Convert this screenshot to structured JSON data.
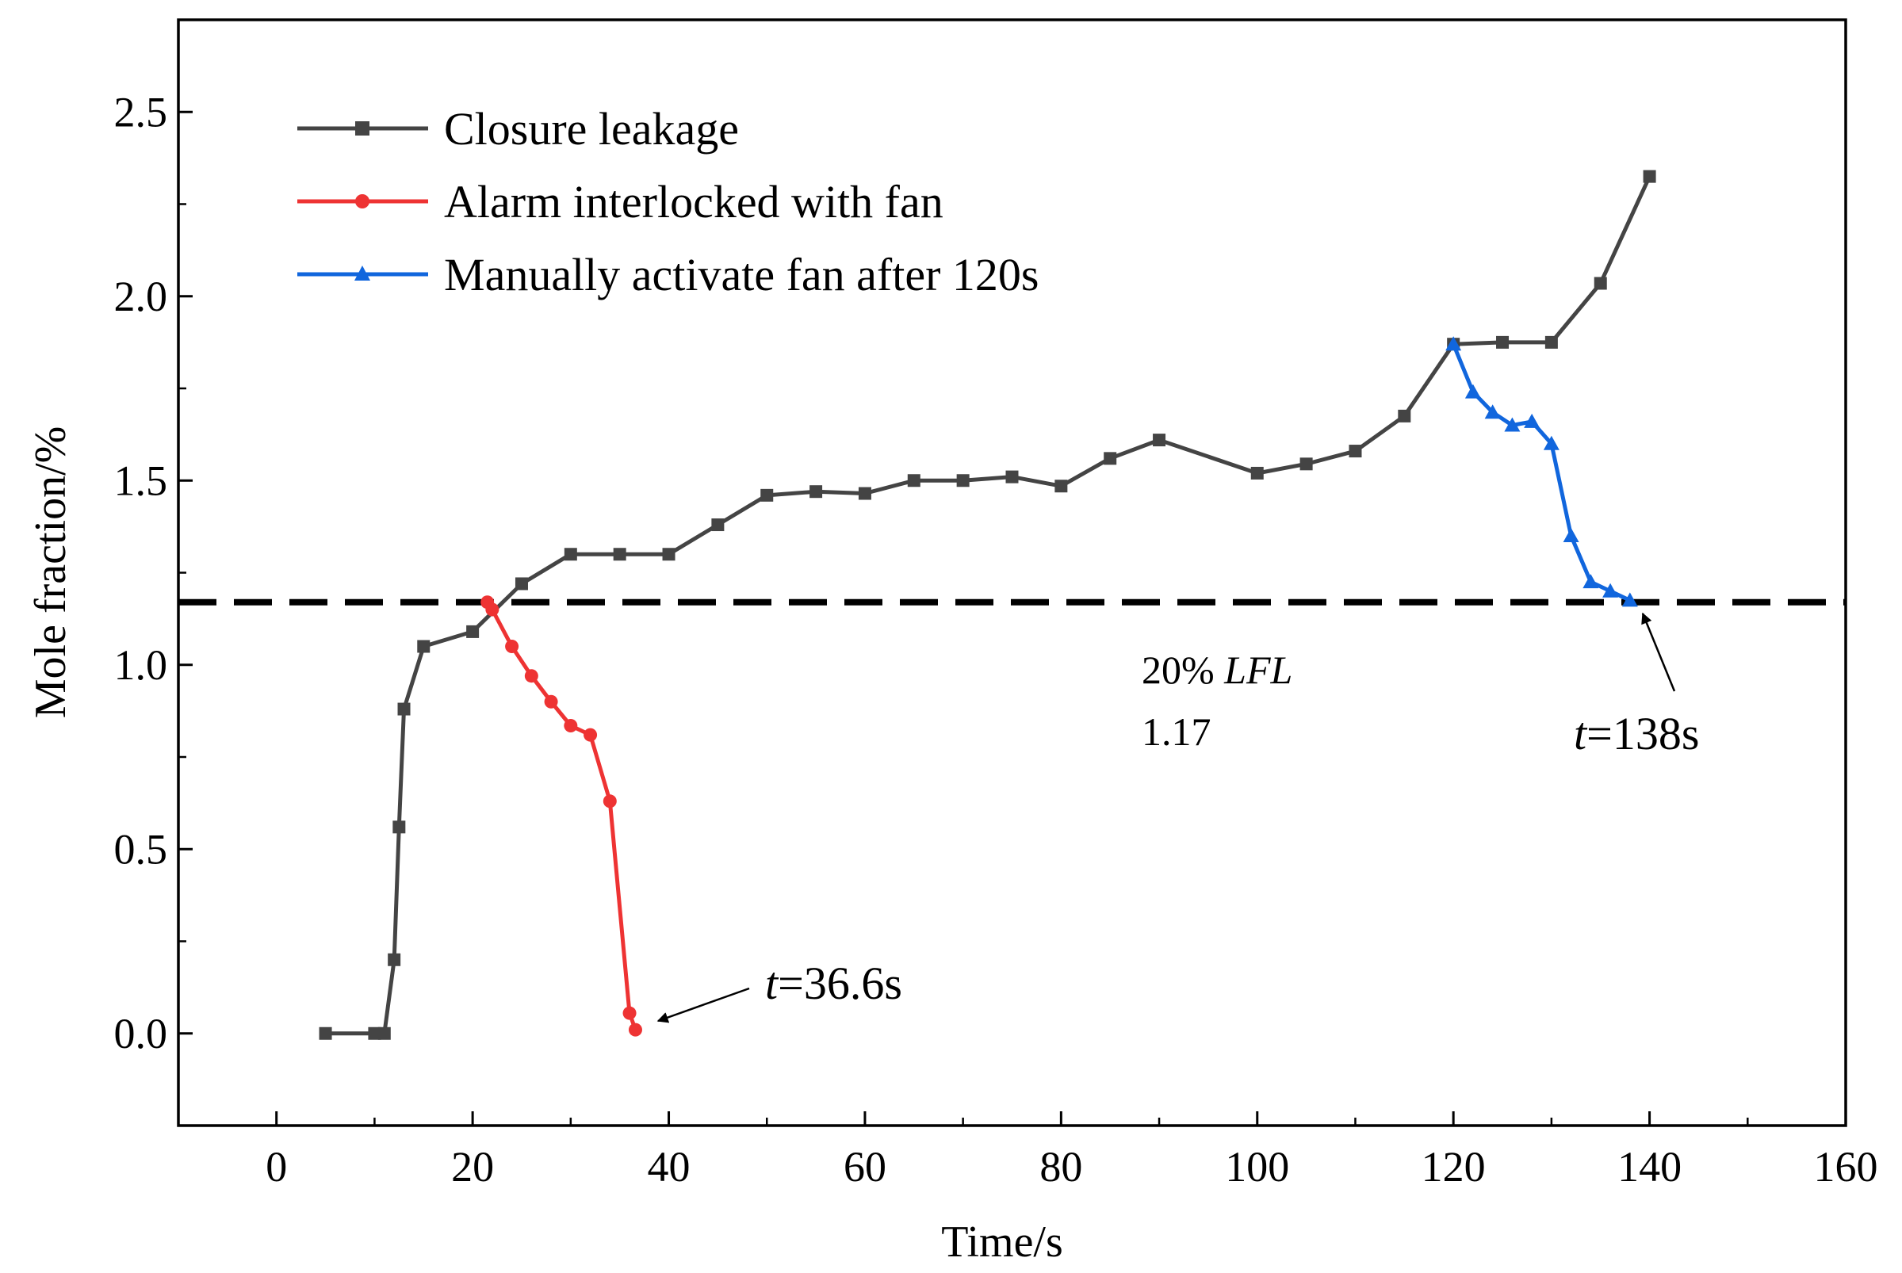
{
  "chart_data": {
    "type": "line",
    "xlabel": "Time/s",
    "ylabel": "Mole fraction/%",
    "xlim": [
      -10,
      160
    ],
    "ylim": [
      -0.25,
      2.75
    ],
    "xticks": [
      0,
      20,
      40,
      60,
      80,
      100,
      120,
      140,
      160
    ],
    "xtick_labels": [
      "0",
      "20",
      "40",
      "60",
      "80",
      "100",
      "120",
      "140",
      "160"
    ],
    "yticks": [
      0.0,
      0.5,
      1.0,
      1.5,
      2.0,
      2.5
    ],
    "ytick_labels": [
      "0.0",
      "0.5",
      "1.0",
      "1.5",
      "2.0",
      "2.5"
    ],
    "legend_position": "top-left",
    "series": [
      {
        "name": "Closure leakage",
        "color": "#444444",
        "marker": "square",
        "x": [
          5,
          10,
          11,
          12,
          12.5,
          13,
          15,
          20,
          25,
          30,
          35,
          40,
          45,
          50,
          55,
          60,
          65,
          70,
          75,
          80,
          85,
          90,
          100,
          105,
          110,
          115,
          120,
          125,
          130,
          135,
          140
        ],
        "y": [
          0.0,
          0.0,
          0.0,
          0.2,
          0.56,
          0.88,
          1.05,
          1.09,
          1.22,
          1.3,
          1.3,
          1.3,
          1.38,
          1.46,
          1.47,
          1.465,
          1.5,
          1.5,
          1.51,
          1.485,
          1.56,
          1.61,
          1.52,
          1.545,
          1.58,
          1.675,
          1.87,
          1.875,
          1.875,
          2.035,
          2.325
        ]
      },
      {
        "name": "Alarm interlocked with fan",
        "color": "#ee3333",
        "marker": "circle",
        "x": [
          21.5,
          22,
          24,
          26,
          28,
          30,
          32,
          34,
          36,
          36.6
        ],
        "y": [
          1.17,
          1.15,
          1.05,
          0.97,
          0.9,
          0.835,
          0.81,
          0.63,
          0.055,
          0.01
        ]
      },
      {
        "name": "Manually activate fan after 120s",
        "color": "#1166dd",
        "marker": "triangle",
        "x": [
          120,
          122,
          124,
          126,
          128,
          130,
          132,
          134,
          136,
          138
        ],
        "y": [
          1.87,
          1.74,
          1.685,
          1.65,
          1.66,
          1.6,
          1.35,
          1.225,
          1.2,
          1.175
        ]
      }
    ],
    "reference_line": {
      "y": 1.17,
      "style": "dashed",
      "color": "#000000"
    },
    "annotations": {
      "lfl_label_pre": "20% ",
      "lfl_label_italic": "LFL",
      "lfl_value": "1.17",
      "t1_italic": "t",
      "t1_text": "=36.6s",
      "t1_target": [
        36.6,
        0.01
      ],
      "t2_italic": "t",
      "t2_text": "=138s",
      "t2_target": [
        138,
        1.17
      ]
    }
  }
}
